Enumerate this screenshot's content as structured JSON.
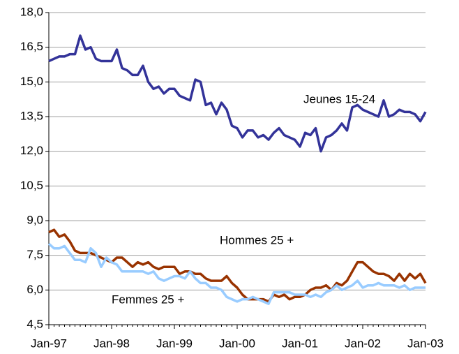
{
  "chart_data": {
    "type": "line",
    "categories": [
      "Jan-97",
      null,
      null,
      null,
      null,
      null,
      null,
      null,
      null,
      null,
      null,
      null,
      "Jan-98",
      null,
      null,
      null,
      null,
      null,
      null,
      null,
      null,
      null,
      null,
      null,
      "Jan-99",
      null,
      null,
      null,
      null,
      null,
      null,
      null,
      null,
      null,
      null,
      null,
      "Jan-00",
      null,
      null,
      null,
      null,
      null,
      null,
      null,
      null,
      null,
      null,
      null,
      "Jan-01",
      null,
      null,
      null,
      null,
      null,
      null,
      null,
      null,
      null,
      null,
      null,
      "Jan-02",
      null,
      null,
      null,
      null,
      null,
      null,
      null,
      null,
      null,
      null,
      null,
      "Jan-03"
    ],
    "series": [
      {
        "name": "Jeunes 15-24",
        "color": "#333399",
        "values": [
          15.9,
          16.0,
          16.1,
          16.1,
          16.2,
          16.2,
          17.0,
          16.4,
          16.5,
          16.0,
          15.9,
          15.9,
          15.9,
          16.4,
          15.6,
          15.5,
          15.3,
          15.3,
          15.7,
          15.0,
          14.7,
          14.8,
          14.5,
          14.7,
          14.7,
          14.4,
          14.3,
          14.2,
          15.1,
          15.0,
          14.0,
          14.1,
          13.6,
          14.1,
          13.8,
          13.1,
          13.0,
          12.6,
          12.9,
          12.9,
          12.6,
          12.7,
          12.5,
          12.8,
          13.0,
          12.7,
          12.6,
          12.5,
          12.2,
          12.8,
          12.7,
          13.0,
          12.0,
          12.6,
          12.7,
          12.9,
          13.2,
          12.9,
          13.9,
          14.0,
          13.8,
          13.7,
          13.6,
          13.5,
          14.2,
          13.5,
          13.6,
          13.8,
          13.7,
          13.7,
          13.6,
          13.3,
          13.7
        ]
      },
      {
        "name": "Hommes 25 +",
        "color": "#993300",
        "values": [
          8.5,
          8.6,
          8.3,
          8.4,
          8.1,
          7.7,
          7.6,
          7.6,
          7.6,
          7.5,
          7.4,
          7.3,
          7.2,
          7.4,
          7.4,
          7.2,
          7.0,
          7.2,
          7.1,
          7.2,
          7.0,
          6.9,
          7.0,
          7.0,
          7.0,
          6.7,
          6.8,
          6.8,
          6.7,
          6.7,
          6.5,
          6.4,
          6.4,
          6.4,
          6.6,
          6.3,
          6.1,
          5.8,
          5.6,
          5.6,
          5.6,
          5.6,
          5.5,
          5.8,
          5.7,
          5.8,
          5.6,
          5.7,
          5.7,
          5.8,
          6.0,
          6.1,
          6.1,
          6.2,
          6.0,
          6.3,
          6.2,
          6.4,
          6.8,
          7.2,
          7.2,
          7.0,
          6.8,
          6.7,
          6.7,
          6.6,
          6.4,
          6.7,
          6.4,
          6.7,
          6.5,
          6.7,
          6.3
        ]
      },
      {
        "name": "Femmes 25 +",
        "color": "#99ccff",
        "values": [
          8.0,
          7.8,
          7.8,
          7.9,
          7.6,
          7.3,
          7.3,
          7.2,
          7.8,
          7.6,
          7.0,
          7.4,
          7.2,
          7.1,
          6.8,
          6.8,
          6.8,
          6.8,
          6.8,
          6.7,
          6.8,
          6.5,
          6.4,
          6.5,
          6.6,
          6.6,
          6.5,
          6.8,
          6.5,
          6.3,
          6.3,
          6.1,
          6.1,
          6.0,
          5.7,
          5.6,
          5.5,
          5.6,
          5.6,
          5.7,
          5.6,
          5.5,
          5.4,
          5.9,
          5.9,
          5.9,
          5.9,
          5.8,
          5.8,
          5.8,
          5.7,
          5.8,
          5.7,
          5.9,
          6.0,
          6.2,
          6.0,
          6.1,
          6.2,
          6.4,
          6.1,
          6.2,
          6.2,
          6.3,
          6.2,
          6.2,
          6.2,
          6.1,
          6.2,
          6.0,
          6.1,
          6.1,
          6.1
        ]
      }
    ],
    "ylim": [
      4.5,
      18
    ],
    "yticks": [
      {
        "value": 4.5,
        "label": "4,5"
      },
      {
        "value": 6,
        "label": "6,0"
      },
      {
        "value": 7.5,
        "label": "7,5"
      },
      {
        "value": 9,
        "label": "9,0"
      },
      {
        "value": 10.5,
        "label": "10,5"
      },
      {
        "value": 12,
        "label": "12,0"
      },
      {
        "value": 13.5,
        "label": "13,5"
      },
      {
        "value": 15,
        "label": "15,0"
      },
      {
        "value": 16.5,
        "label": "16,5"
      },
      {
        "value": 18,
        "label": "18,0"
      }
    ],
    "grid": true
  }
}
